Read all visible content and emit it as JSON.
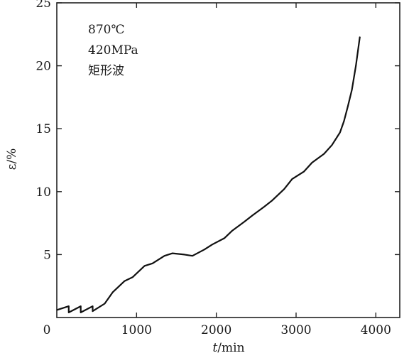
{
  "chart_data": {
    "type": "line",
    "xlabel": "t/min",
    "xlabel_parts": {
      "var": "t",
      "unit": "/min"
    },
    "ylabel": "ε/%",
    "xlim": [
      0,
      4300
    ],
    "ylim": [
      0,
      25
    ],
    "xticks": [
      1000,
      2000,
      3000,
      4000
    ],
    "yticks": [
      5,
      10,
      15,
      20,
      25
    ],
    "origin_label": "0",
    "grid": false,
    "annotations": [
      "870℃",
      "420MPa",
      "矩形波"
    ],
    "series": [
      {
        "x": [
          0,
          150,
          150,
          300,
          300,
          450,
          450,
          600,
          700,
          850,
          950,
          1100,
          1200,
          1350,
          1450,
          1600,
          1700,
          1850,
          1950,
          2100,
          2200,
          2350,
          2450,
          2600,
          2700,
          2850,
          2950,
          3100,
          3200,
          3350,
          3450,
          3550,
          3600,
          3650,
          3700,
          3750,
          3800
        ],
        "y": [
          0.6,
          0.9,
          0.4,
          0.9,
          0.4,
          0.9,
          0.5,
          1.1,
          2.0,
          2.9,
          3.2,
          4.1,
          4.3,
          4.9,
          5.1,
          5.0,
          4.9,
          5.4,
          5.8,
          6.3,
          6.9,
          7.6,
          8.1,
          8.8,
          9.3,
          10.2,
          11.0,
          11.6,
          12.3,
          13.0,
          13.7,
          14.7,
          15.6,
          16.8,
          18.1,
          20.0,
          22.3
        ]
      }
    ]
  }
}
